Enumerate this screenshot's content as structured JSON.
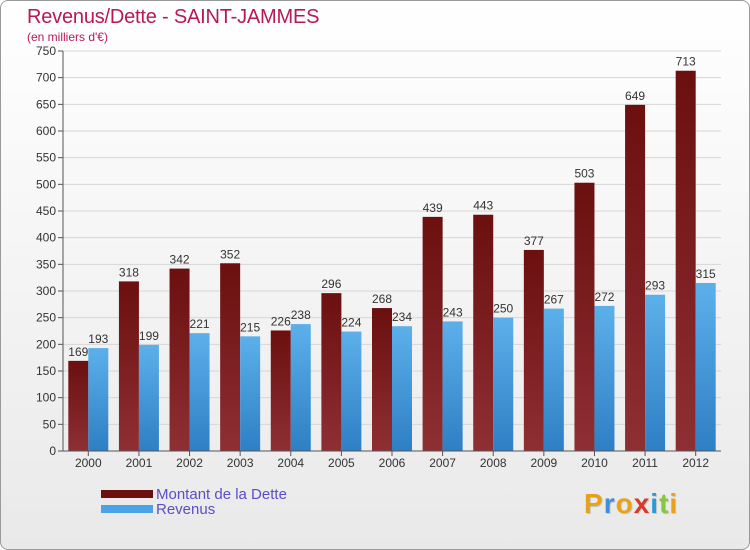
{
  "title": "Revenus/Dette - SAINT-JAMMES",
  "subtitle": "(en milliers d'€)",
  "logo": {
    "letters": [
      "P",
      "r",
      "o",
      "x",
      "i",
      "t",
      "i"
    ],
    "colors": [
      "#e8a21a",
      "#3d8fd6",
      "#e8a21a",
      "#d63a2a",
      "#2b9bd6",
      "#8bc53f",
      "#e8a21a"
    ]
  },
  "colors": {
    "dette_top": "#6b0f0f",
    "dette_bottom": "#8e2f34",
    "revenus_top": "#5cb0ea",
    "revenus_bottom": "#2e7fc4",
    "title": "#b5195a",
    "legend_text": "#5a4ec6"
  },
  "legend": [
    {
      "label": "Montant de la Dette",
      "color": "#6b0f0f"
    },
    {
      "label": "Revenus",
      "color": "#4aa3e6"
    }
  ],
  "chart_data": {
    "type": "bar",
    "categories": [
      "2000",
      "2001",
      "2002",
      "2003",
      "2004",
      "2005",
      "2006",
      "2007",
      "2008",
      "2009",
      "2010",
      "2011",
      "2012"
    ],
    "series": [
      {
        "name": "Montant de la Dette",
        "values": [
          169,
          318,
          342,
          352,
          226,
          296,
          268,
          439,
          443,
          377,
          503,
          649,
          713
        ]
      },
      {
        "name": "Revenus",
        "values": [
          193,
          199,
          221,
          215,
          238,
          224,
          234,
          243,
          250,
          267,
          272,
          293,
          315
        ]
      }
    ],
    "ylim": [
      0,
      750
    ],
    "yticks": [
      0,
      50,
      100,
      150,
      200,
      250,
      300,
      350,
      400,
      450,
      500,
      550,
      600,
      650,
      700,
      750
    ],
    "grid": true
  }
}
